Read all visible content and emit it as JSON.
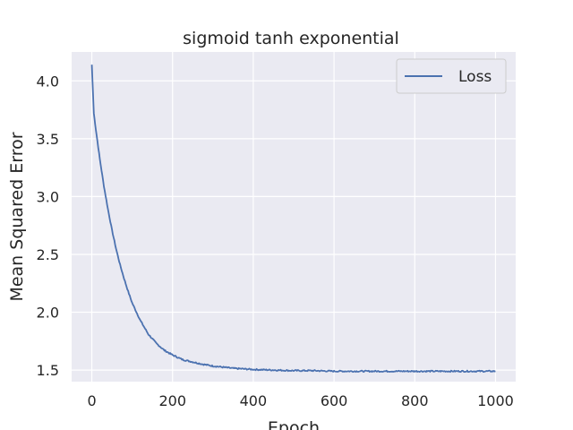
{
  "chart_data": {
    "type": "line",
    "title": "sigmoid tanh exponential",
    "xlabel": "Epoch",
    "ylabel": "Mean Squared Error",
    "xlim": [
      -50,
      1050
    ],
    "ylim": [
      1.4,
      4.25
    ],
    "xticks": [
      0,
      200,
      400,
      600,
      800,
      1000
    ],
    "yticks": [
      1.5,
      2.0,
      2.5,
      3.0,
      3.5,
      4.0
    ],
    "xtick_labels": [
      "0",
      "200",
      "400",
      "600",
      "800",
      "1000"
    ],
    "ytick_labels": [
      "1.5",
      "2.0",
      "2.5",
      "3.0",
      "3.5",
      "4.0"
    ],
    "grid": true,
    "legend_position": "top-right",
    "series": [
      {
        "name": "Loss",
        "color": "#4c72b0",
        "x": [
          0,
          5,
          10,
          20,
          30,
          40,
          50,
          60,
          70,
          80,
          90,
          100,
          120,
          140,
          160,
          180,
          200,
          225,
          250,
          275,
          300,
          350,
          400,
          450,
          500,
          550,
          600,
          650,
          700,
          750,
          800,
          850,
          900,
          950,
          1000
        ],
        "y": [
          4.14,
          3.72,
          3.58,
          3.32,
          3.09,
          2.89,
          2.71,
          2.55,
          2.41,
          2.29,
          2.18,
          2.08,
          1.93,
          1.81,
          1.73,
          1.67,
          1.63,
          1.59,
          1.57,
          1.55,
          1.535,
          1.515,
          1.505,
          1.5,
          1.495,
          1.495,
          1.49,
          1.49,
          1.49,
          1.49,
          1.49,
          1.49,
          1.49,
          1.49,
          1.49
        ]
      }
    ]
  }
}
